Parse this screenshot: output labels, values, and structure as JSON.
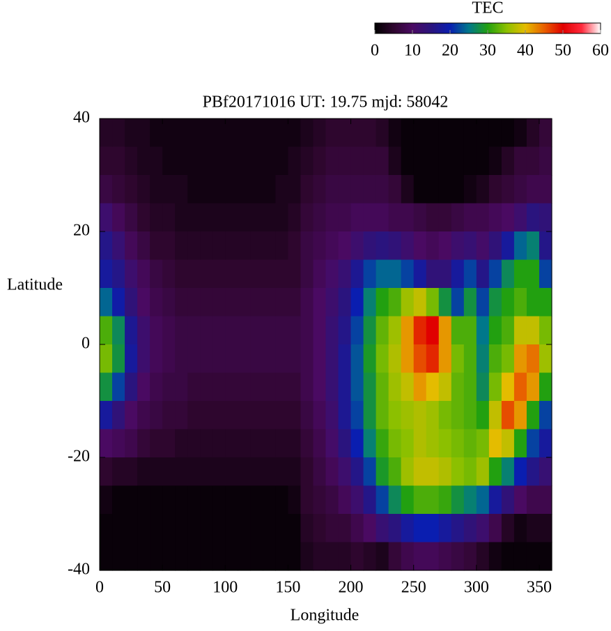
{
  "chart_data": {
    "type": "heatmap",
    "title": "PBf20171016  UT: 19.75  mjd: 58042",
    "xlabel": "Longitude",
    "ylabel": "Latitude",
    "colorbar_label": "TEC",
    "xlim": [
      0,
      360
    ],
    "xticks": [
      0,
      50,
      100,
      150,
      200,
      250,
      300,
      350
    ],
    "ylim": [
      -40,
      40
    ],
    "yticks": [
      -40,
      -20,
      0,
      20,
      40
    ],
    "zlim": [
      0,
      60
    ],
    "zticks": [
      0,
      10,
      20,
      30,
      40,
      50,
      60
    ],
    "colorscale": [
      "#000000",
      "#2e062e",
      "#4a0a62",
      "#2a147e",
      "#0a1eb0",
      "#00788a",
      "#22a010",
      "#8cc000",
      "#e4bc00",
      "#e86000",
      "#e00000",
      "#ff2a3c",
      "#ffffff"
    ],
    "x": [
      5,
      15,
      25,
      35,
      45,
      55,
      65,
      75,
      85,
      95,
      105,
      115,
      125,
      135,
      145,
      155,
      165,
      175,
      185,
      195,
      205,
      215,
      225,
      235,
      245,
      255,
      265,
      275,
      285,
      295,
      305,
      315,
      325,
      335,
      345,
      355
    ],
    "y": [
      37.5,
      32.5,
      27.5,
      22.5,
      17.5,
      12.5,
      7.5,
      2.5,
      -2.5,
      -7.5,
      -12.5,
      -17.5,
      -22.5,
      -27.5,
      -32.5,
      -37.5
    ],
    "z": [
      [
        4,
        4,
        3,
        3,
        2,
        2,
        2,
        2,
        2,
        2,
        2,
        2,
        2,
        2,
        2,
        2,
        3,
        4,
        5,
        5,
        5,
        5,
        4,
        2,
        1,
        1,
        1,
        1,
        1,
        1,
        1,
        1,
        1,
        2,
        4,
        6
      ],
      [
        5,
        5,
        4,
        3,
        3,
        2,
        2,
        2,
        2,
        2,
        2,
        2,
        2,
        2,
        2,
        3,
        4,
        5,
        6,
        6,
        6,
        6,
        6,
        3,
        1,
        1,
        1,
        1,
        1,
        1,
        1,
        2,
        4,
        6,
        6,
        7
      ],
      [
        7,
        6,
        5,
        4,
        3,
        3,
        3,
        2,
        2,
        2,
        2,
        2,
        2,
        2,
        3,
        3,
        5,
        6,
        7,
        7,
        7,
        7,
        7,
        6,
        3,
        1,
        1,
        1,
        1,
        2,
        3,
        5,
        6,
        7,
        8,
        8
      ],
      [
        12,
        9,
        7,
        5,
        4,
        4,
        3,
        3,
        3,
        3,
        3,
        3,
        3,
        3,
        3,
        4,
        6,
        7,
        8,
        8,
        9,
        9,
        9,
        8,
        8,
        7,
        6,
        6,
        7,
        8,
        8,
        9,
        10,
        12,
        15,
        14
      ],
      [
        16,
        13,
        9,
        7,
        5,
        5,
        4,
        4,
        4,
        4,
        4,
        4,
        4,
        4,
        4,
        5,
        7,
        8,
        9,
        10,
        12,
        14,
        15,
        14,
        12,
        10,
        9,
        10,
        12,
        13,
        11,
        14,
        18,
        24,
        26,
        16
      ],
      [
        18,
        16,
        12,
        9,
        7,
        6,
        5,
        5,
        5,
        5,
        5,
        5,
        5,
        5,
        5,
        5,
        7,
        9,
        11,
        13,
        17,
        22,
        24,
        24,
        22,
        18,
        14,
        14,
        18,
        22,
        16,
        22,
        27,
        30,
        30,
        22
      ],
      [
        24,
        19,
        14,
        10,
        8,
        7,
        6,
        6,
        6,
        6,
        6,
        6,
        6,
        6,
        6,
        6,
        8,
        10,
        12,
        15,
        20,
        26,
        30,
        32,
        36,
        38,
        34,
        28,
        22,
        28,
        22,
        28,
        30,
        32,
        30,
        30
      ],
      [
        32,
        27,
        17,
        12,
        9,
        8,
        7,
        7,
        7,
        7,
        7,
        7,
        7,
        7,
        7,
        7,
        8,
        10,
        13,
        16,
        22,
        28,
        33,
        36,
        42,
        48,
        50,
        42,
        32,
        32,
        25,
        30,
        32,
        38,
        38,
        34
      ],
      [
        34,
        28,
        18,
        12,
        9,
        8,
        7,
        7,
        7,
        7,
        7,
        7,
        7,
        7,
        7,
        7,
        8,
        10,
        13,
        17,
        23,
        29,
        34,
        37,
        42,
        46,
        48,
        42,
        34,
        32,
        26,
        32,
        34,
        42,
        44,
        36
      ],
      [
        28,
        22,
        15,
        10,
        8,
        7,
        7,
        6,
        6,
        6,
        6,
        6,
        6,
        6,
        6,
        6,
        8,
        10,
        13,
        17,
        23,
        28,
        33,
        36,
        38,
        42,
        40,
        38,
        33,
        32,
        27,
        34,
        40,
        45,
        42,
        30
      ],
      [
        18,
        14,
        10,
        8,
        7,
        6,
        6,
        5,
        5,
        5,
        5,
        5,
        5,
        5,
        5,
        5,
        7,
        9,
        12,
        17,
        22,
        28,
        33,
        35,
        36,
        37,
        36,
        34,
        33,
        32,
        30,
        38,
        46,
        42,
        30,
        22
      ],
      [
        10,
        9,
        8,
        6,
        5,
        5,
        4,
        4,
        4,
        4,
        4,
        4,
        4,
        4,
        4,
        4,
        6,
        8,
        11,
        15,
        20,
        26,
        31,
        34,
        35,
        37,
        36,
        35,
        34,
        33,
        34,
        40,
        38,
        30,
        22,
        18
      ],
      [
        5,
        4,
        4,
        3,
        3,
        3,
        3,
        3,
        3,
        3,
        3,
        3,
        3,
        3,
        3,
        3,
        5,
        7,
        9,
        12,
        16,
        22,
        29,
        32,
        36,
        38,
        38,
        37,
        35,
        34,
        36,
        30,
        26,
        20,
        16,
        13
      ],
      [
        2,
        1,
        1,
        1,
        1,
        1,
        1,
        1,
        1,
        1,
        1,
        1,
        1,
        1,
        1,
        2,
        5,
        6,
        7,
        9,
        12,
        16,
        22,
        27,
        30,
        32,
        32,
        31,
        28,
        26,
        24,
        18,
        14,
        10,
        8,
        8
      ],
      [
        1,
        1,
        1,
        1,
        1,
        1,
        1,
        1,
        1,
        1,
        1,
        1,
        1,
        1,
        1,
        1,
        4,
        5,
        6,
        6,
        8,
        10,
        13,
        15,
        18,
        20,
        20,
        18,
        16,
        14,
        12,
        8,
        4,
        2,
        3,
        3
      ],
      [
        1,
        1,
        1,
        1,
        1,
        1,
        1,
        1,
        1,
        1,
        1,
        1,
        1,
        1,
        1,
        1,
        3,
        4,
        4,
        4,
        5,
        4,
        3,
        6,
        8,
        9,
        9,
        8,
        7,
        6,
        4,
        2,
        1,
        1,
        1,
        1
      ]
    ]
  }
}
